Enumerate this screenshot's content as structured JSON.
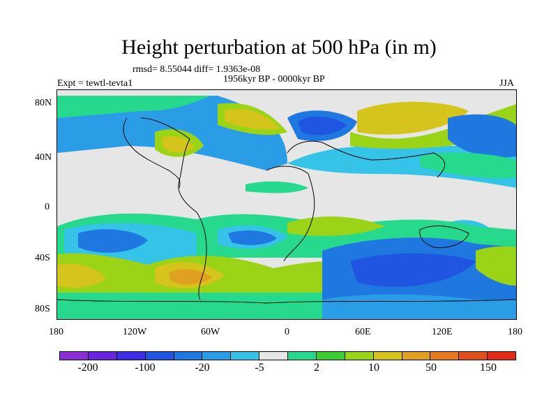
{
  "title": "Height perturbation at 500 hPa (in m)",
  "stats": "rmsd= 8.55044  diff= 1.9363e-08",
  "experiment": "Expt = tewtl-tevta1",
  "period": "1956kyr BP - 0000kyr BP",
  "season": "JJA",
  "y_ticks": [
    "80N",
    "40N",
    "0",
    "40S",
    "80S"
  ],
  "x_ticks": [
    "180",
    "120W",
    "60W",
    "0",
    "60E",
    "120E",
    "180"
  ],
  "colorbar": {
    "colors": [
      "#8c2ed6",
      "#6a24e0",
      "#3d2fe6",
      "#1f55e0",
      "#1f78e0",
      "#2a9de6",
      "#36c3e8",
      "#e6e6e6",
      "#26d98c",
      "#3dcc33",
      "#9bd417",
      "#d4c41c",
      "#e0a020",
      "#e67a1f",
      "#e0501c",
      "#e62a1a"
    ],
    "labels": [
      "-200",
      "-100",
      "-20",
      "-5",
      "2",
      "10",
      "50",
      "150"
    ]
  }
}
